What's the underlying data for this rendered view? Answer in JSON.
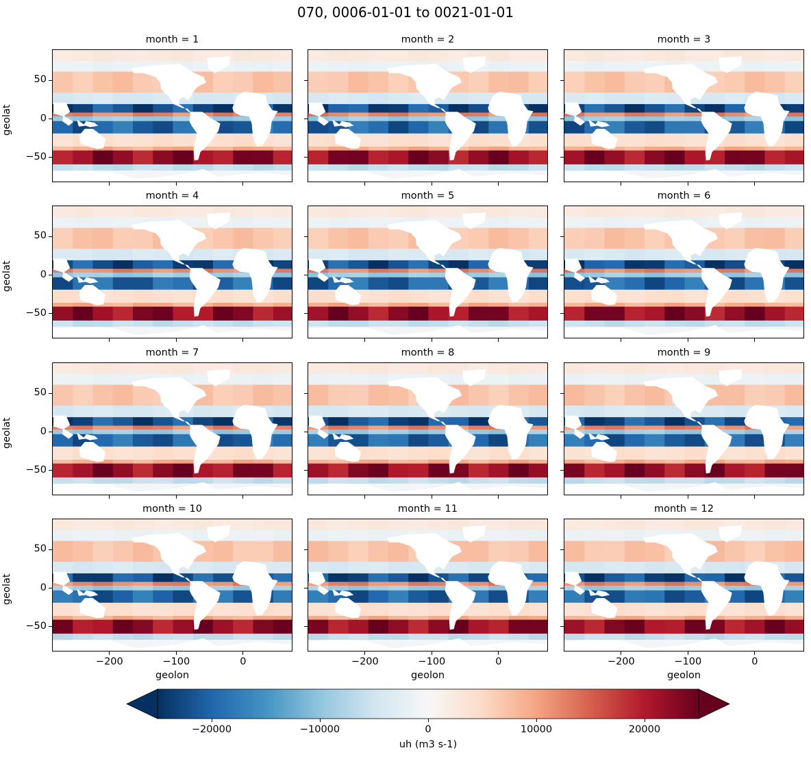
{
  "figure": {
    "title": "070, 0006-01-01 to 0021-01-01"
  },
  "chart_data": {
    "type": "heatmap",
    "title": "070, 0006-01-01 to 0021-01-01",
    "variable": "uh",
    "colorbar": {
      "label": "uh (m3 s-1)",
      "colormap": "RdBu_r",
      "extend": "both",
      "vmin": -25000,
      "vmax": 25000,
      "ticks": [
        -20000,
        -10000,
        0,
        10000,
        20000
      ],
      "tick_labels": [
        "−20000",
        "−10000",
        "0",
        "10000",
        "20000"
      ],
      "colors": [
        "#053061",
        "#2166ac",
        "#4393c3",
        "#92c5de",
        "#d1e5f0",
        "#f7f7f7",
        "#fddbc7",
        "#f4a582",
        "#d6604d",
        "#b2182b",
        "#67001f"
      ]
    },
    "xlabel": "geolon",
    "ylabel": "geolat",
    "xlim": [
      -286,
      74
    ],
    "ylim": [
      -82,
      90
    ],
    "x_ticks": [
      -200,
      -100,
      0
    ],
    "x_tick_labels": [
      "−200",
      "−100",
      "0"
    ],
    "y_ticks": [
      50,
      0,
      -50
    ],
    "y_tick_labels": [
      "50",
      "0",
      "−50"
    ],
    "facet": "month",
    "panels": [
      {
        "month": 1,
        "title": "month = 1"
      },
      {
        "month": 2,
        "title": "month = 2"
      },
      {
        "month": 3,
        "title": "month = 3"
      },
      {
        "month": 4,
        "title": "month = 4"
      },
      {
        "month": 5,
        "title": "month = 5"
      },
      {
        "month": 6,
        "title": "month = 6"
      },
      {
        "month": 7,
        "title": "month = 7"
      },
      {
        "month": 8,
        "title": "month = 8"
      },
      {
        "month": 9,
        "title": "month = 9"
      },
      {
        "month": 10,
        "title": "month = 10"
      },
      {
        "month": 11,
        "title": "month = 11"
      },
      {
        "month": 12,
        "title": "month = 12"
      }
    ],
    "bands": [
      {
        "lat_top": 90,
        "lat_bot": 76,
        "value": 2500
      },
      {
        "lat_top": 76,
        "lat_bot": 62,
        "value": -1500
      },
      {
        "lat_top": 62,
        "lat_bot": 35,
        "value": 7000
      },
      {
        "lat_top": 35,
        "lat_bot": 20,
        "value": -4000
      },
      {
        "lat_top": 20,
        "lat_bot": 9,
        "value": -22000
      },
      {
        "lat_top": 9,
        "lat_bot": 4,
        "value": 12000
      },
      {
        "lat_top": 4,
        "lat_bot": -2,
        "value": -9000
      },
      {
        "lat_top": -2,
        "lat_bot": -18,
        "value": -20000
      },
      {
        "lat_top": -18,
        "lat_bot": -35,
        "value": 4000
      },
      {
        "lat_top": -35,
        "lat_bot": -40,
        "value": 9000
      },
      {
        "lat_top": -40,
        "lat_bot": -58,
        "value": 22000
      },
      {
        "lat_top": -58,
        "lat_bot": -66,
        "value": -6000
      },
      {
        "lat_top": -66,
        "lat_bot": -82,
        "value": -500
      }
    ]
  }
}
